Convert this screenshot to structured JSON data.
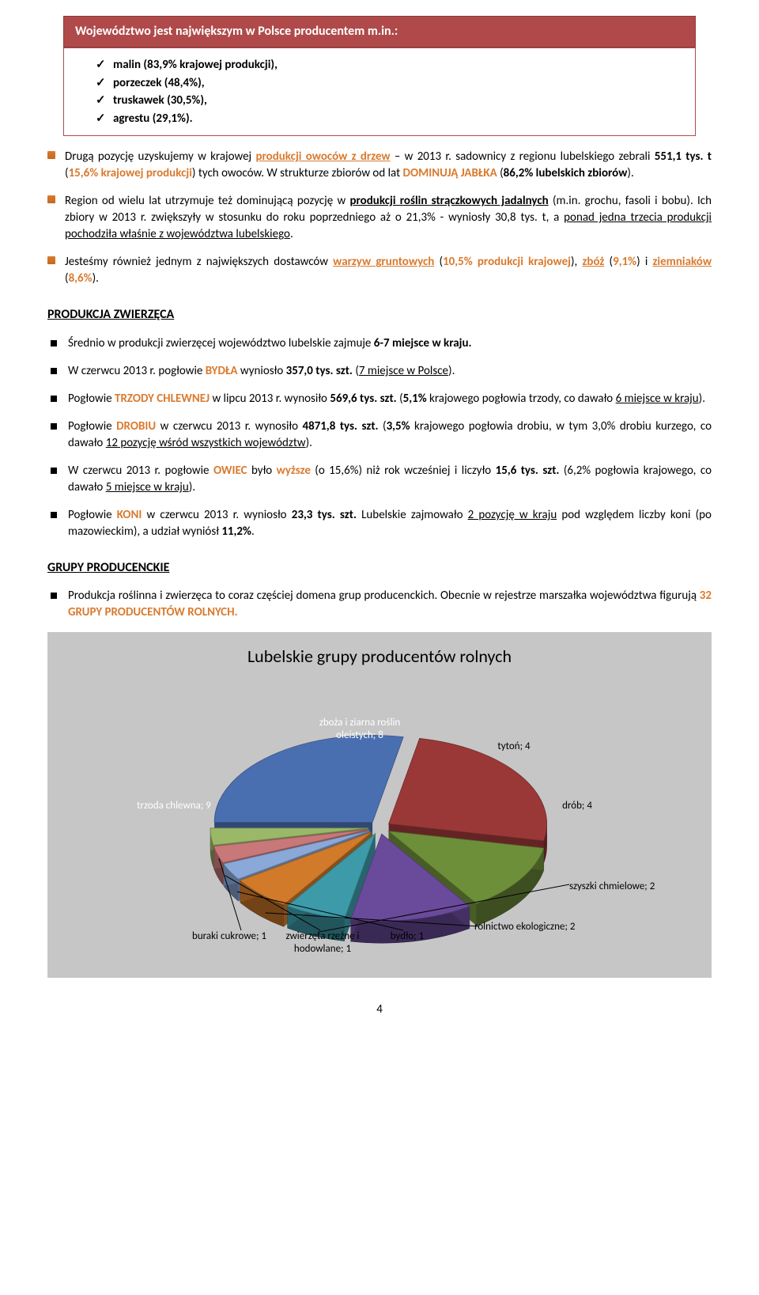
{
  "banner": {
    "text": "Województwo jest największym w Polsce producentem m.in.:",
    "bg_color": "#b04a4a"
  },
  "checklist": [
    "malin (83,9% krajowej produkcji),",
    "porzeczek (48,4%),",
    "truskawek (30,5%),",
    "agrestu (29,1%)."
  ],
  "p1": {
    "a": "Drugą pozycję uzyskujemy w krajowej ",
    "b": "produkcji owoców z drzew",
    "c": " – w 2013 r. sadownicy z regionu lubelskiego zebrali ",
    "d": "551,1 tys. t",
    "e": " (",
    "f": "15,6% krajowej produkcji",
    "g": ") tych owoców. W strukturze zbiorów od lat ",
    "h": "DOMINUJĄ JABŁKA",
    "i": " (",
    "j": "86,2% lubelskich zbiorów",
    "k": ")."
  },
  "p2": {
    "a": "Region od wielu lat utrzymuje też dominującą pozycję w ",
    "b": "produkcji roślin strączkowych jadalnych",
    "c": " (m.in. grochu, fasoli i bobu). Ich zbiory w 2013 r. zwiększyły w stosunku do roku poprzedniego aż o 21,3% - wyniosły 30,8 tys. t, a ",
    "d": "ponad jedna trzecia produkcji pochodziła właśnie z województwa lubelskiego",
    "e": "."
  },
  "p3": {
    "a": "Jesteśmy również jednym z największych dostawców ",
    "b": "warzyw gruntowych",
    "c": " (",
    "d": "10,5% produkcji krajowej",
    "e": "), ",
    "f": "zbóż",
    "g": " (",
    "h": "9,1%",
    "i": ") i ",
    "j": "ziemniaków",
    "k": " (",
    "l": "8,6%",
    "m": ")."
  },
  "section1_title": "PRODUKCJA ZWIERZĘCA",
  "sq1": {
    "a": "Średnio w produkcji zwierzęcej województwo lubelskie zajmuje ",
    "b": "6-7 miejsce w kraju.",
    "c": ""
  },
  "sq2": {
    "a": "W czerwcu 2013 r. pogłowie ",
    "b": "BYDŁA",
    "c": " wyniosło ",
    "d": "357,0 tys. szt.",
    "e": " (",
    "f": "7 miejsce w Polsce",
    "g": ")."
  },
  "sq3": {
    "a": "Pogłowie ",
    "b": "TRZODY CHLEWNEJ",
    "c": " w lipcu 2013 r. wynosiło ",
    "d": "569,6 tys. szt.",
    "e": " (",
    "f": "5,1%",
    "g": " krajowego pogłowia trzody, co dawało ",
    "h": "6 miejsce w kraju",
    "i": ")."
  },
  "sq4": {
    "a": "Pogłowie ",
    "b": "DROBIU",
    "c": " w czerwcu 2013 r. wynosiło ",
    "d": "4871,8 tys. szt.",
    "e": " (",
    "f": "3,5%",
    "g": " krajowego pogłowia drobiu, w tym 3,0% drobiu kurzego, co dawało ",
    "h": "12 pozycję wśród wszystkich województw",
    "i": ")."
  },
  "sq5": {
    "a": "W czerwcu 2013 r. pogłowie ",
    "b": "OWIEC",
    "c": " było ",
    "d": "wyższe",
    "e": " (o 15,6%) niż rok wcześniej i liczyło ",
    "f": "15,6 tys. szt.",
    "g": " (6,2% pogłowia krajowego, co dawało ",
    "h": "5 miejsce w kraju",
    "i": ")."
  },
  "sq6": {
    "a": "Pogłowie ",
    "b": "KONI",
    "c": " w czerwcu 2013 r. wyniosło ",
    "d": "23,3 tys. szt.",
    "e": " Lubelskie zajmowało ",
    "f": "2 pozycję w kraju",
    "g": " pod względem liczby koni (po mazowieckim), a udział wyniósł ",
    "h": "11,2%",
    "i": "."
  },
  "section2_title": "GRUPY PRODUCENCKIE",
  "p_groups": {
    "a": "Produkcja roślinna i zwierzęca to coraz częściej domena  grup producenckich. Obecnie w rejestrze marszałka województwa figurują ",
    "b": "32 GRUPY PRODUCENTÓW ROLNYCH."
  },
  "chart": {
    "title": "Lubelskie grupy producentów rolnych",
    "bg_color": "#c6c6c6",
    "type": "pie",
    "slices": [
      {
        "label": "trzoda chlewna; 9",
        "value": 9,
        "color": "#4a6fb0"
      },
      {
        "label": "zboża i ziarna roślin oleistych; 8",
        "value": 8,
        "color": "#9a3838"
      },
      {
        "label": "tytoń; 4",
        "value": 4,
        "color": "#6e8f3a"
      },
      {
        "label": "drób; 4",
        "value": 4,
        "color": "#6a4a9a"
      },
      {
        "label": "szyszki chmielowe; 2",
        "value": 2,
        "color": "#3d9aa8"
      },
      {
        "label": "rolnictwo ekologiczne; 2",
        "value": 2,
        "color": "#d07a2a"
      },
      {
        "label": "bydło; 1",
        "value": 1,
        "color": "#8aa8d8"
      },
      {
        "label": "zwierzęta rzeźne i hodowlane; 1",
        "value": 1,
        "color": "#c87878"
      },
      {
        "label": "buraki cukrowe; 1",
        "value": 1,
        "color": "#9ab868"
      }
    ]
  },
  "page_number": "4"
}
